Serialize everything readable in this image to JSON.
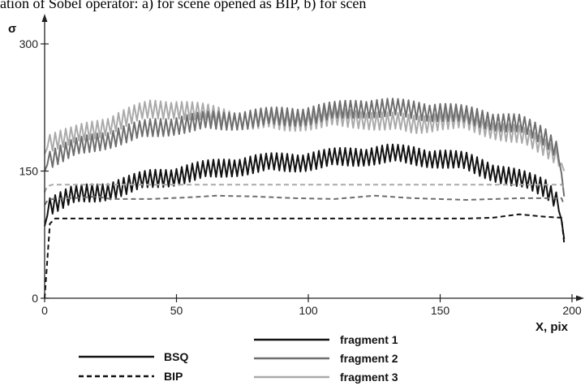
{
  "caption": "ation of Sobel operator: a) for scene opened as BIP, b) for scen",
  "chart_data": {
    "type": "line",
    "ylabel": "σ",
    "xlabel": "X, pix",
    "xlim": [
      0,
      200
    ],
    "ylim": [
      0,
      300
    ],
    "x_ticks": [
      "0",
      "50",
      "100",
      "150",
      "200"
    ],
    "y_ticks": [
      "0",
      "150",
      "300"
    ],
    "legend_left": [
      {
        "label": "BSQ",
        "style": "solid"
      },
      {
        "label": "BIP",
        "style": "dashed"
      }
    ],
    "legend_right": [
      {
        "label": "fragment 1",
        "color": "#111111"
      },
      {
        "label": "fragment 2",
        "color": "#6e6e6e"
      },
      {
        "label": "fragment 3",
        "color": "#aaaaaa"
      }
    ],
    "series": [
      {
        "name": "fragment 3",
        "style": "solid",
        "color": "#aaaaaa",
        "x": [
          0,
          2,
          10,
          20,
          30,
          40,
          50,
          60,
          70,
          80,
          90,
          100,
          110,
          120,
          130,
          140,
          150,
          160,
          170,
          180,
          190,
          195,
          197
        ],
        "y": [
          170,
          185,
          190,
          200,
          212,
          222,
          224,
          218,
          212,
          210,
          208,
          210,
          212,
          212,
          208,
          205,
          210,
          208,
          200,
          192,
          178,
          168,
          150
        ],
        "noise": 12
      },
      {
        "name": "fragment 2",
        "style": "solid",
        "color": "#6e6e6e",
        "x": [
          0,
          2,
          10,
          20,
          30,
          40,
          50,
          60,
          70,
          80,
          90,
          100,
          110,
          120,
          130,
          140,
          150,
          160,
          170,
          180,
          190,
          195,
          197
        ],
        "y": [
          150,
          165,
          175,
          185,
          193,
          200,
          205,
          208,
          210,
          212,
          214,
          216,
          220,
          225,
          224,
          222,
          220,
          215,
          210,
          205,
          190,
          175,
          120
        ],
        "noise": 12
      },
      {
        "name": "fragment 1",
        "style": "solid",
        "color": "#111111",
        "x": [
          0,
          2,
          10,
          20,
          30,
          40,
          50,
          60,
          70,
          80,
          90,
          100,
          110,
          120,
          130,
          140,
          150,
          160,
          170,
          180,
          190,
          195,
          197
        ],
        "y": [
          85,
          110,
          120,
          125,
          132,
          140,
          145,
          150,
          155,
          158,
          160,
          162,
          165,
          168,
          170,
          168,
          165,
          160,
          150,
          140,
          130,
          115,
          70
        ],
        "noise": 12
      },
      {
        "name": "fragment 3",
        "style": "dashed",
        "color": "#aaaaaa",
        "x": [
          0,
          1,
          3,
          50,
          100,
          150,
          196,
          197
        ],
        "y": [
          125,
          132,
          134,
          134,
          134,
          134,
          134,
          130
        ],
        "noise": 0
      },
      {
        "name": "fragment 2",
        "style": "dashed",
        "color": "#6e6e6e",
        "x": [
          0,
          1,
          3,
          10,
          20,
          25,
          40,
          55,
          65,
          80,
          95,
          110,
          125,
          140,
          160,
          180,
          196,
          197
        ],
        "y": [
          110,
          115,
          117,
          118,
          120,
          117,
          117,
          119,
          121,
          120,
          118,
          117,
          121,
          118,
          116,
          118,
          118,
          110
        ],
        "noise": 0
      },
      {
        "name": "fragment 1",
        "style": "dashed",
        "color": "#111111",
        "x": [
          0,
          2,
          4,
          50,
          100,
          150,
          160,
          170,
          180,
          190,
          196,
          197
        ],
        "y": [
          0,
          88,
          94,
          94,
          94,
          94,
          94,
          95,
          99,
          96,
          95,
          65
        ],
        "noise": 0
      }
    ]
  }
}
